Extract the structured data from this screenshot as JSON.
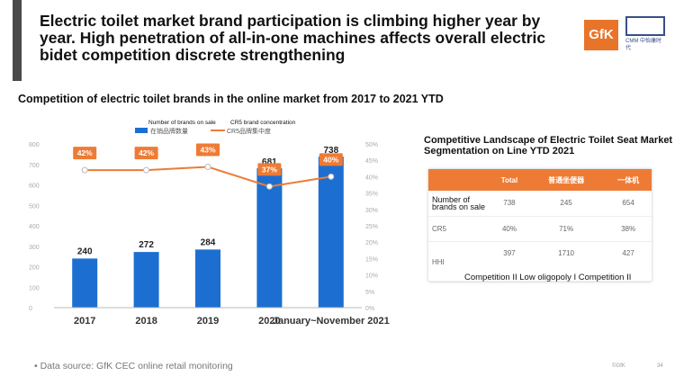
{
  "header": {
    "title": "Electric toilet market brand participation is climbing higher year by year. High penetration of all-in-one machines affects overall electric bidet competition discrete strengthening",
    "logo_gfk": "GfK",
    "logo_cmm": "CMM 中怡康时代"
  },
  "subtitle": "Competition of electric toilet brands in the online market from 2017 to 2021 YTD",
  "chart_data": {
    "type": "bar",
    "categories": [
      "2017",
      "2018",
      "2019",
      "2020",
      "January~November 2021"
    ],
    "series": [
      {
        "name": "Number of brands on sale",
        "legend_cn": "在销品牌数量",
        "type": "bar",
        "values": [
          240,
          272,
          284,
          681,
          738
        ],
        "color": "#1c6fd1"
      },
      {
        "name": "CR5 brand concentration",
        "legend_cn": "CR5品牌集中度",
        "type": "line",
        "values": [
          42,
          42,
          43,
          37,
          40
        ],
        "labels": [
          "42%",
          "42%",
          "43%",
          "37%",
          "40%"
        ],
        "color": "#ee7b35"
      }
    ],
    "ylim_left": [
      0,
      800
    ],
    "left_ticks": [
      "0",
      "100",
      "200",
      "300",
      "400",
      "500",
      "600",
      "700",
      "800"
    ],
    "ylim_right": [
      0,
      50
    ],
    "right_ticks": [
      "0%",
      "5%",
      "10%",
      "15%",
      "20%",
      "25%",
      "30%",
      "35%",
      "40%",
      "45%",
      "50%"
    ],
    "grid": false,
    "legend_placement": "top-left"
  },
  "right_panel": {
    "title": "Competitive Landscape of Electric Toilet Seat Market Segmentation on Line YTD 2021",
    "columns": [
      "",
      "Total",
      "普通坐便器",
      "一体机"
    ],
    "rows": [
      {
        "label": "Number of brands on sale",
        "values": [
          "738",
          "245",
          "654"
        ]
      },
      {
        "label": "CR5",
        "values": [
          "40%",
          "71%",
          "38%"
        ]
      },
      {
        "label": "HHI",
        "values": [
          "397",
          "1710",
          "427"
        ]
      }
    ],
    "footnote": "Competition II Low oligopoly I Competition II"
  },
  "footer": {
    "source": "• Data source: GfK CEC online retail monitoring",
    "corner_left": "©GfK",
    "corner_right": "34"
  }
}
